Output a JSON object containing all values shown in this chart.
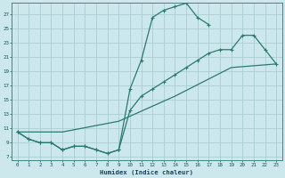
{
  "xlabel": "Humidex (Indice chaleur)",
  "bg_color": "#cce8ec",
  "grid_color": "#aacdd4",
  "line_color": "#2a7a72",
  "xlim": [
    -0.5,
    23.5
  ],
  "ylim": [
    6.5,
    28.5
  ],
  "yticks": [
    7,
    9,
    11,
    13,
    15,
    17,
    19,
    21,
    23,
    25,
    27
  ],
  "xticks": [
    0,
    1,
    2,
    3,
    4,
    5,
    6,
    7,
    8,
    9,
    10,
    11,
    12,
    13,
    14,
    15,
    16,
    17,
    18,
    19,
    20,
    21,
    22,
    23
  ],
  "line1_x": [
    0,
    1,
    2,
    3,
    4,
    5,
    6,
    7,
    8,
    9,
    10,
    11,
    12,
    13,
    14,
    15,
    16,
    17
  ],
  "line1_y": [
    10.5,
    9.5,
    9.0,
    9.0,
    8.0,
    8.5,
    8.5,
    8.0,
    7.5,
    8.0,
    16.5,
    20.5,
    26.5,
    27.5,
    28.0,
    28.5,
    26.5,
    25.5
  ],
  "line2_x": [
    0,
    1,
    2,
    3,
    4,
    5,
    6,
    7,
    8,
    9,
    10,
    11,
    12,
    13,
    14,
    15,
    16,
    17,
    18,
    19,
    20,
    21,
    22,
    23
  ],
  "line2_y": [
    10.5,
    9.5,
    9.0,
    9.0,
    8.0,
    8.5,
    8.5,
    8.0,
    7.5,
    8.0,
    13.5,
    15.5,
    16.5,
    17.5,
    18.5,
    19.5,
    20.5,
    21.5,
    22.0,
    22.0,
    24.0,
    24.0,
    22.0,
    20.0
  ],
  "line3_x": [
    0,
    4,
    9,
    14,
    19,
    23
  ],
  "line3_y": [
    10.5,
    10.5,
    12.0,
    15.5,
    19.5,
    20.0
  ]
}
